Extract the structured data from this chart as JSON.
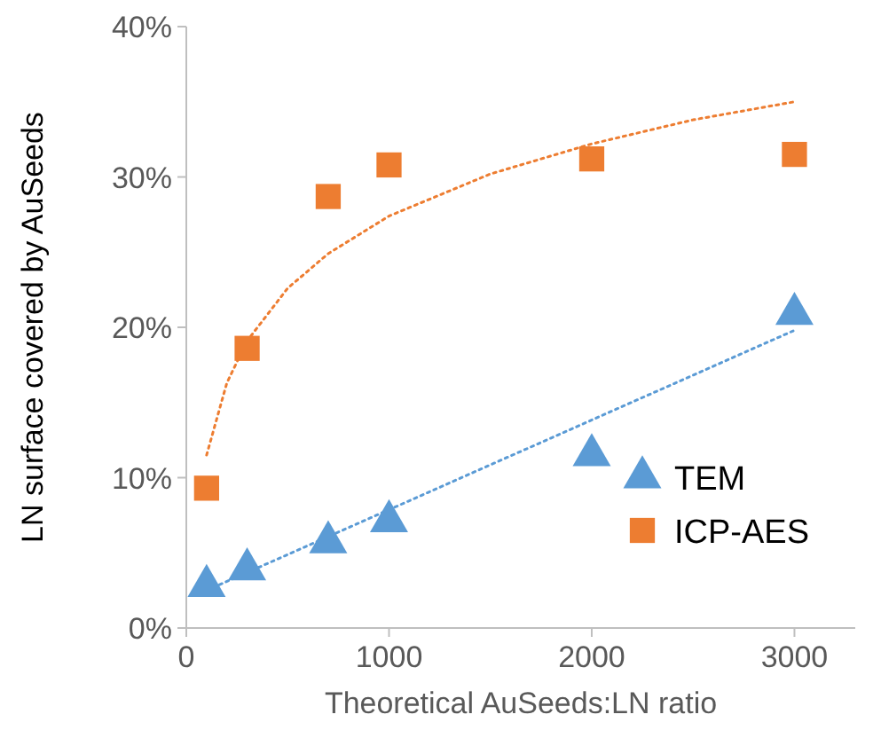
{
  "chart_data": {
    "type": "scatter",
    "xlabel": "Theoretical AuSeeds:LN ratio",
    "ylabel": "LN surface covered by AuSeeds",
    "xlim": [
      0,
      3300
    ],
    "xticks": [
      0,
      1000,
      2000,
      3000
    ],
    "ylim": [
      0,
      40
    ],
    "yticks": [
      {
        "value": 0,
        "label": "0%"
      },
      {
        "value": 10,
        "label": "10%"
      },
      {
        "value": 20,
        "label": "20%"
      },
      {
        "value": 30,
        "label": "30%"
      },
      {
        "value": 40,
        "label": "40%"
      }
    ],
    "grid": false,
    "legend": "bottom right",
    "series": [
      {
        "type": "line",
        "color": "#5b9bd5",
        "line_style": "dotted",
        "marker": "none",
        "x": [
          100,
          3000
        ],
        "values": [
          2.5,
          19.8
        ]
      },
      {
        "type": "line",
        "color": "#ed7d31",
        "line_style": "dotted",
        "marker": "none",
        "x": [
          100,
          200,
          300,
          500,
          700,
          1000,
          1500,
          2000,
          2500,
          3000
        ],
        "values": [
          11.5,
          16.3,
          19.1,
          22.6,
          24.9,
          27.4,
          30.2,
          32.2,
          33.8,
          35.0
        ]
      },
      {
        "name": "TEM",
        "marker": "triangle",
        "color": "#5b9bd5",
        "x": [
          100,
          300,
          700,
          1000,
          2000,
          3000
        ],
        "values": [
          2.8,
          3.9,
          5.7,
          7.1,
          11.5,
          20.9
        ]
      },
      {
        "name": "ICP-AES",
        "marker": "square",
        "color": "#ed7d31",
        "x": [
          100,
          300,
          700,
          1000,
          2000,
          3000
        ],
        "values": [
          9.3,
          18.6,
          28.7,
          30.8,
          31.2,
          31.5
        ]
      }
    ]
  }
}
